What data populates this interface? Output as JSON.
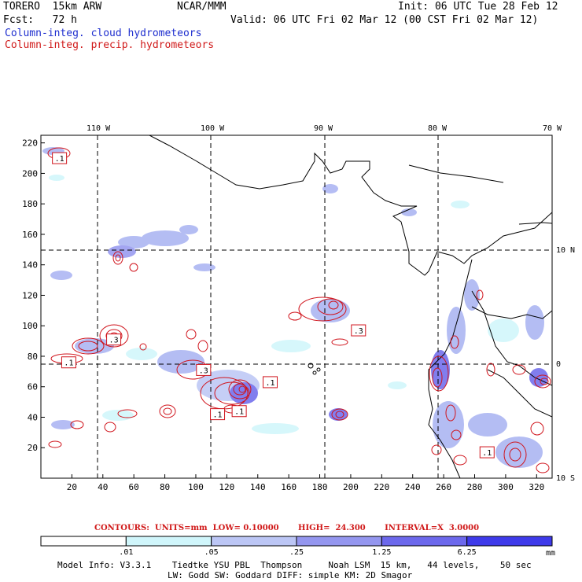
{
  "header": {
    "model": "TORERO  15km ARW",
    "center": "NCAR/MMM",
    "init": "Init: 06 UTC Tue 28 Feb 12",
    "fcst": "Fcst:   72 h",
    "valid": "Valid: 06 UTC Fri 02 Mar 12 (00 CST Fri 02 Mar 12)",
    "field1": "Column-integ. cloud hydrometeors",
    "field2": "Column-integ. precip. hydrometeors"
  },
  "map": {
    "lon_labels": [
      "110 W",
      "100 W",
      "90 W",
      "80 W",
      "70 W"
    ],
    "lat_labels": [
      "10 N",
      "0",
      "10 S"
    ],
    "x_ticks": [
      "20",
      "40",
      "60",
      "80",
      "100",
      "120",
      "140",
      "160",
      "180",
      "200",
      "220",
      "240",
      "260",
      "280",
      "300",
      "320"
    ],
    "y_ticks": [
      "220",
      "200",
      "180",
      "160",
      "140",
      "120",
      "100",
      "80",
      "60",
      "40",
      "20"
    ],
    "x_range": [
      0,
      330
    ],
    "y_range": [
      0,
      225
    ],
    "box_labels": [
      {
        "text": ".1",
        "x": 12,
        "y": 210
      },
      {
        "text": ".3",
        "x": 47,
        "y": 91
      },
      {
        "text": ".1",
        "x": 18,
        "y": 76
      },
      {
        "text": ".3",
        "x": 105,
        "y": 71
      },
      {
        "text": ".1",
        "x": 148,
        "y": 63
      },
      {
        "text": ".1",
        "x": 128,
        "y": 44
      },
      {
        "text": ".1",
        "x": 114,
        "y": 42
      },
      {
        "text": ".3",
        "x": 205,
        "y": 97
      },
      {
        "text": ".1",
        "x": 288,
        "y": 17
      }
    ]
  },
  "colorbar": {
    "labels": [
      ".01",
      ".05",
      ".25",
      "1.25",
      "6.25"
    ],
    "unit": "mm",
    "colors": [
      "#ffffff",
      "#d0f6fb",
      "#bcc6f5",
      "#9496ef",
      "#6c68ec",
      "#3e3aea"
    ]
  },
  "contours_line": "CONTOURS:  UNITS=mm  LOW= 0.10000       HIGH=  24.300       INTERVAL=X  3.0000",
  "model_info": {
    "line1": "Model Info: V3.3.1    Tiedtke YSU PBL  Thompson     Noah LSM  15 km,   44 levels,    50 sec",
    "line2": "LW: Godd SW: Goddard DIFF: simple KM: 2D Smagor"
  }
}
